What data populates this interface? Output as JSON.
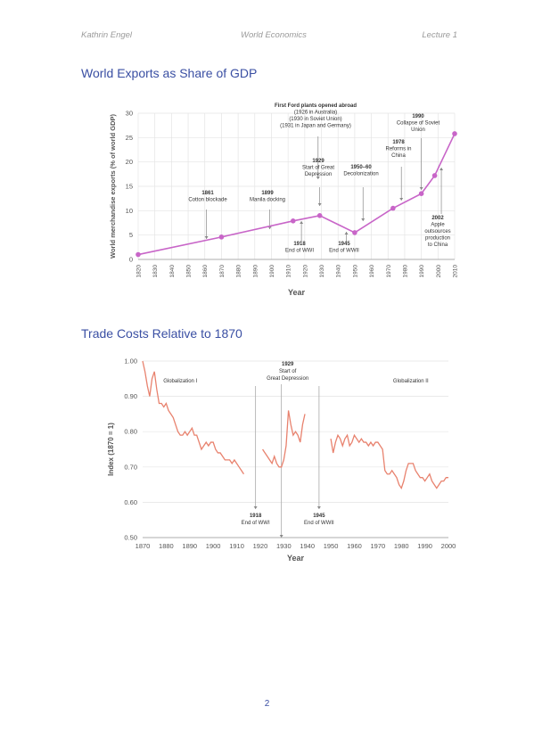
{
  "header": {
    "author": "Kathrin Engel",
    "course": "World Economics",
    "lecture": "Lecture 1"
  },
  "sections": [
    {
      "title": "World Exports as Share of GDP"
    },
    {
      "title": "Trade Costs Relative to 1870"
    }
  ],
  "page_number": "2",
  "colors": {
    "accent": "#3a4fa3",
    "exports_line": "#c865c8",
    "trade_line": "#e8826e"
  },
  "chart_data": [
    {
      "type": "line",
      "xlabel": "Year",
      "ylabel": "World merchandise exports (% of world GDP)",
      "xlim": [
        1820,
        2010
      ],
      "ylim": [
        0,
        30
      ],
      "xticks": [
        "1820",
        "1830",
        "1840",
        "1850",
        "1860",
        "1870",
        "1880",
        "1890",
        "1900",
        "1910",
        "1920",
        "1930",
        "1940",
        "1950",
        "1960",
        "1970",
        "1980",
        "1990",
        "2000",
        "2010"
      ],
      "yticks": [
        "0",
        "5",
        "10",
        "15",
        "20",
        "25",
        "30"
      ],
      "grid": true,
      "x": [
        1820,
        1870,
        1913,
        1929,
        1950,
        1973,
        1990,
        1998,
        2010
      ],
      "values": [
        1.0,
        4.6,
        7.9,
        9.0,
        5.5,
        10.5,
        13.5,
        17.2,
        25.8
      ],
      "annotations": [
        {
          "x": 1861,
          "lines": [
            "1861",
            "Cotton blockade"
          ],
          "arrow": "down"
        },
        {
          "x": 1899,
          "lines": [
            "1899",
            "Manila docking"
          ],
          "arrow": "down"
        },
        {
          "x": 1928,
          "lines": [
            "First Ford plants opened abroad",
            "(1926 in Australia)",
            "(1930 in Soviet Union)",
            "(1931 in Japan and Germany)"
          ],
          "arrow": "down"
        },
        {
          "x": 1929,
          "lines": [
            "1929",
            "Start of Great",
            "Depression"
          ],
          "arrow": "down"
        },
        {
          "x": 1955,
          "lines": [
            "1950–60",
            "Decolonization"
          ],
          "arrow": "down"
        },
        {
          "x": 1978,
          "lines": [
            "1978",
            "Reforms in",
            "China"
          ],
          "arrow": "down"
        },
        {
          "x": 1990,
          "lines": [
            "1990",
            "Collapse of Soviet",
            "Union"
          ],
          "arrow": "down"
        },
        {
          "x": 1918,
          "lines": [
            "1918",
            "End of WWI"
          ],
          "arrow": "up"
        },
        {
          "x": 1945,
          "lines": [
            "1945",
            "End of WWII"
          ],
          "arrow": "up"
        },
        {
          "x": 2002,
          "lines": [
            "2002",
            "Apple",
            "outsources",
            "production",
            "to China"
          ],
          "arrow": "up"
        }
      ]
    },
    {
      "type": "line",
      "xlabel": "Year",
      "ylabel": "Index (1870 = 1)",
      "xlim": [
        1870,
        2000
      ],
      "ylim": [
        0.5,
        1.0
      ],
      "xticks": [
        "1870",
        "1880",
        "1890",
        "1900",
        "1910",
        "1920",
        "1930",
        "1940",
        "1950",
        "1960",
        "1970",
        "1980",
        "1990",
        "2000"
      ],
      "yticks": [
        "0.50",
        "0.60",
        "0.70",
        "0.80",
        "0.90",
        "1.00"
      ],
      "grid": true,
      "segments": [
        {
          "x": [
            1870,
            1871,
            1872,
            1873,
            1874,
            1875,
            1876,
            1877,
            1878,
            1879,
            1880,
            1881,
            1882,
            1883,
            1884,
            1885,
            1886,
            1887,
            1888,
            1889,
            1890,
            1891,
            1892,
            1893,
            1894,
            1895,
            1896,
            1897,
            1898,
            1899,
            1900,
            1901,
            1902,
            1903,
            1904,
            1905,
            1906,
            1907,
            1908,
            1909,
            1910,
            1911,
            1912,
            1913
          ],
          "values": [
            1.0,
            0.97,
            0.93,
            0.9,
            0.95,
            0.97,
            0.92,
            0.88,
            0.88,
            0.87,
            0.88,
            0.86,
            0.85,
            0.84,
            0.82,
            0.8,
            0.79,
            0.79,
            0.8,
            0.79,
            0.8,
            0.81,
            0.79,
            0.79,
            0.77,
            0.75,
            0.76,
            0.77,
            0.76,
            0.77,
            0.77,
            0.75,
            0.74,
            0.74,
            0.73,
            0.72,
            0.72,
            0.72,
            0.71,
            0.72,
            0.71,
            0.7,
            0.69,
            0.68
          ]
        },
        {
          "x": [
            1921,
            1922,
            1923,
            1924,
            1925,
            1926,
            1927,
            1928,
            1929,
            1930,
            1931,
            1932,
            1933,
            1934,
            1935,
            1936,
            1937,
            1938,
            1939
          ],
          "values": [
            0.75,
            0.74,
            0.73,
            0.72,
            0.71,
            0.73,
            0.71,
            0.7,
            0.7,
            0.72,
            0.76,
            0.86,
            0.82,
            0.79,
            0.8,
            0.79,
            0.77,
            0.82,
            0.85
          ]
        },
        {
          "x": [
            1950,
            1951,
            1952,
            1953,
            1954,
            1955,
            1956,
            1957,
            1958,
            1959,
            1960,
            1961,
            1962,
            1963,
            1964,
            1965,
            1966,
            1967,
            1968,
            1969,
            1970,
            1971,
            1972,
            1973,
            1974,
            1975,
            1976,
            1977,
            1978,
            1979,
            1980,
            1981,
            1982,
            1983,
            1984,
            1985,
            1986,
            1987,
            1988,
            1989,
            1990,
            1991,
            1992,
            1993,
            1994,
            1995,
            1996,
            1997,
            1998,
            1999,
            2000
          ],
          "values": [
            0.78,
            0.74,
            0.77,
            0.79,
            0.78,
            0.76,
            0.78,
            0.79,
            0.76,
            0.77,
            0.79,
            0.78,
            0.77,
            0.78,
            0.77,
            0.77,
            0.76,
            0.77,
            0.76,
            0.77,
            0.77,
            0.76,
            0.75,
            0.69,
            0.68,
            0.68,
            0.69,
            0.68,
            0.67,
            0.65,
            0.64,
            0.66,
            0.69,
            0.71,
            0.71,
            0.71,
            0.69,
            0.68,
            0.67,
            0.67,
            0.66,
            0.67,
            0.68,
            0.66,
            0.65,
            0.64,
            0.65,
            0.66,
            0.66,
            0.67,
            0.67
          ]
        }
      ],
      "labels": [
        {
          "x": 1886,
          "y": 0.94,
          "lines": [
            "Globalization I"
          ]
        },
        {
          "x": 1984,
          "y": 0.94,
          "lines": [
            "Globalization II"
          ]
        }
      ],
      "vlines": [
        {
          "x": 1918,
          "lines": [
            "1918",
            "End of WWI"
          ],
          "label_pos": "bottom"
        },
        {
          "x": 1929,
          "lines": [
            "1929",
            "Start of",
            "Great Depression"
          ],
          "label_pos": "top"
        },
        {
          "x": 1945,
          "lines": [
            "1945",
            "End of WWII"
          ],
          "label_pos": "bottom"
        }
      ]
    }
  ]
}
